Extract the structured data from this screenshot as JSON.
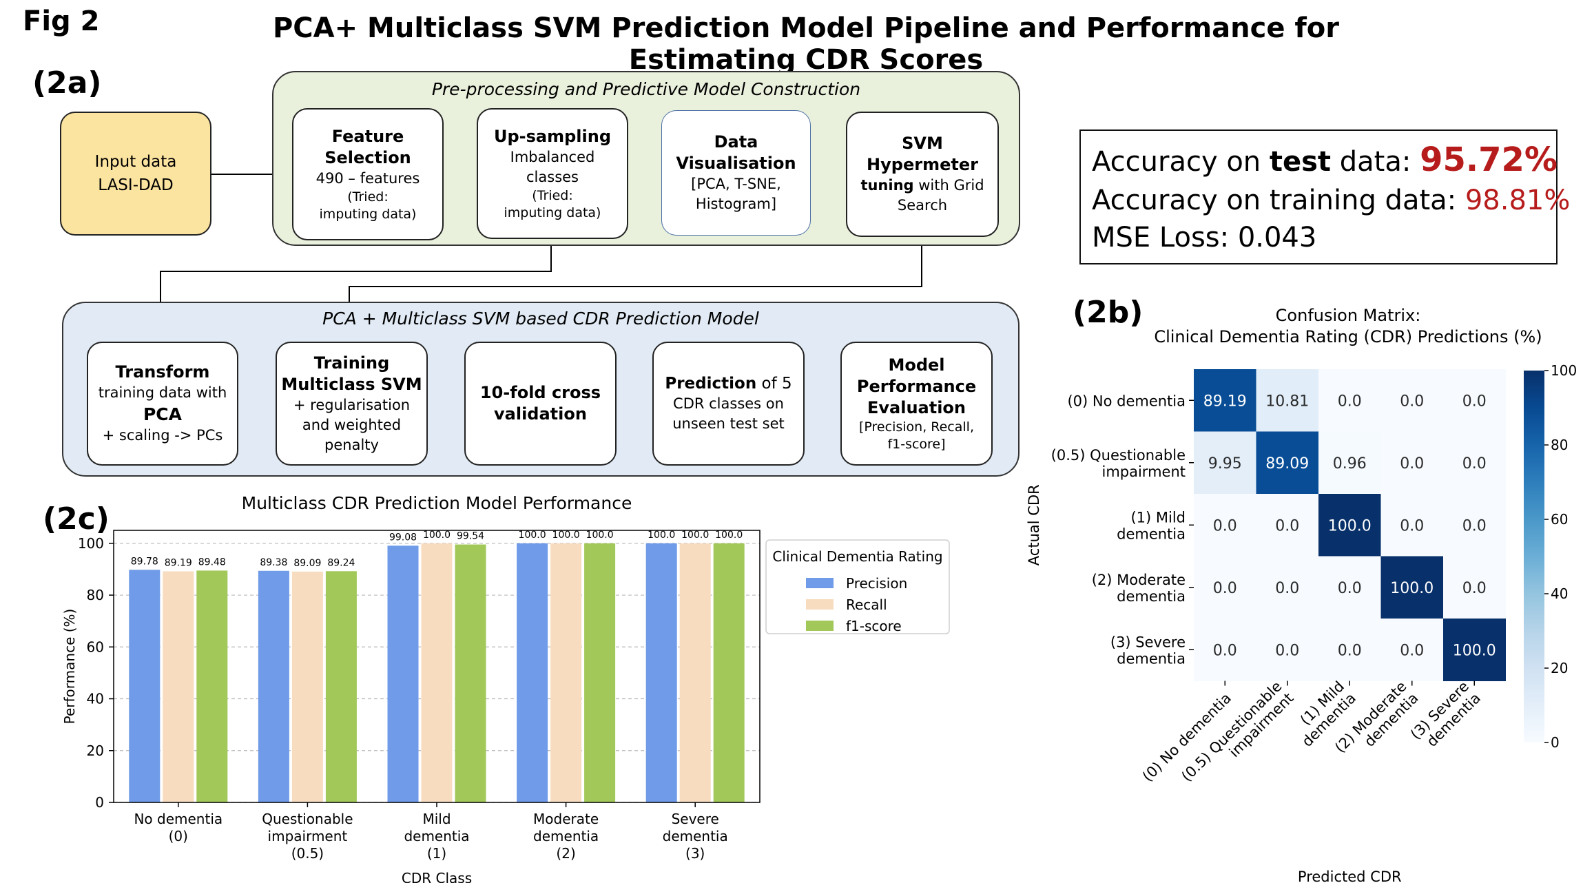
{
  "figure": {
    "label": "Fig 2",
    "title": "PCA+ Multiclass SVM Prediction Model Pipeline and Performance for Estimating CDR Scores"
  },
  "panel_2a": {
    "label": "(2a)",
    "input": {
      "line1": "Input data",
      "line2": "LASI-DAD"
    },
    "preprocessing": {
      "title": "Pre-processing and Predictive Model Construction",
      "feature_selection": {
        "title_l1": "Feature",
        "title_l2": "Selection",
        "line1": "490 – features",
        "line2": "(Tried:",
        "line3": "imputing data)"
      },
      "upsampling": {
        "title": "Up-sampling",
        "line1": "Imbalanced",
        "line2": "classes",
        "line3": "(Tried:",
        "line4": "imputing data)"
      },
      "visualisation": {
        "title_l1": "Data",
        "title_l2": "Visualisation",
        "line1": "[PCA, T-SNE,",
        "line2": "Histogram]"
      },
      "svm_tuning": {
        "title_l1": "SVM",
        "title_l2": "Hypermeter",
        "title_l3_bold": "tuning",
        "title_l3_rest": " with Grid",
        "line1": "Search"
      }
    },
    "prediction_model": {
      "title": "PCA + Multiclass SVM based CDR Prediction Model",
      "transform": {
        "title": "Transform",
        "line1": "training data with",
        "line2_bold": "PCA",
        "line3": "+ scaling -> PCs"
      },
      "training": {
        "title_l1": "Training",
        "title_l2": "Multiclass SVM",
        "line1": "+ regularisation",
        "line2": "and weighted",
        "line3": "penalty"
      },
      "cross_validation": {
        "line1": "10-fold cross",
        "line2": "validation"
      },
      "prediction": {
        "title_bold": "Prediction",
        "title_rest": " of 5",
        "line1": "CDR classes on",
        "line2": "unseen test set"
      },
      "evaluation": {
        "title_l1": "Model",
        "title_l2": "Performance",
        "title_l3": "Evaluation",
        "line1": "[Precision, Recall,",
        "line2": "f1-score]"
      }
    }
  },
  "accuracy": {
    "test_prefix": "Accuracy on ",
    "test_bold": "test",
    "test_suffix": " data: ",
    "test_value": "95.72%",
    "train_label": "Accuracy on training data: ",
    "train_value": "98.81%",
    "mse": "MSE Loss: 0.043",
    "accent_color": "#b71c1c"
  },
  "panel_2b": {
    "label": "(2b)"
  },
  "panel_2c": {
    "label": "(2c)"
  },
  "chart_data": [
    {
      "type": "bar",
      "title": "Multiclass CDR Prediction Model Performance",
      "xlabel": "CDR Class",
      "ylabel": "Performance (%)",
      "ylim": [
        0,
        105
      ],
      "yticks": [
        0,
        20,
        40,
        60,
        80,
        100
      ],
      "grid": true,
      "categories": [
        [
          "No dementia",
          "(0)"
        ],
        [
          "Questionable",
          "impairment",
          "(0.5)"
        ],
        [
          "Mild",
          "dementia",
          "(1)"
        ],
        [
          "Moderate",
          "dementia",
          "(2)"
        ],
        [
          "Severe",
          "dementia",
          "(3)"
        ]
      ],
      "legend": {
        "title": "Clinical Dementia Rating",
        "placement": "right"
      },
      "series": [
        {
          "name": "Precision",
          "color": "#6f9be8",
          "values": [
            89.78,
            89.38,
            99.08,
            100.0,
            100.0
          ]
        },
        {
          "name": "Recall",
          "color": "#f7dcc0",
          "values": [
            89.19,
            89.09,
            100.0,
            100.0,
            100.0
          ]
        },
        {
          "name": "f1-score",
          "color": "#a2c85a",
          "values": [
            89.48,
            89.24,
            99.54,
            100.0,
            100.0
          ]
        }
      ]
    },
    {
      "type": "heatmap",
      "title_l1": "Confusion Matrix:",
      "title_l2": "Clinical Dementia Rating (CDR) Predictions (%)",
      "xlabel": "Predicted CDR",
      "ylabel": "Actual CDR",
      "row_labels": [
        [
          "(0) No dementia"
        ],
        [
          "(0.5) Questionable",
          "impairment"
        ],
        [
          "(1) Mild",
          "dementia"
        ],
        [
          "(2) Moderate",
          "dementia"
        ],
        [
          "(3) Severe",
          "dementia"
        ]
      ],
      "col_labels": [
        [
          "(0) No dementia"
        ],
        [
          "(0.5) Questionable",
          "impairment"
        ],
        [
          "(1) Mild",
          "dementia"
        ],
        [
          "(2) Moderate",
          "dementia"
        ],
        [
          "(3) Severe",
          "dementia"
        ]
      ],
      "matrix": [
        [
          89.19,
          10.81,
          0.0,
          0.0,
          0.0
        ],
        [
          9.95,
          89.09,
          0.96,
          0.0,
          0.0
        ],
        [
          0.0,
          0.0,
          100.0,
          0.0,
          0.0
        ],
        [
          0.0,
          0.0,
          0.0,
          100.0,
          0.0
        ],
        [
          0.0,
          0.0,
          0.0,
          0.0,
          100.0
        ]
      ],
      "colorbar": {
        "min": 0,
        "max": 100,
        "ticks": [
          0,
          20,
          40,
          60,
          80,
          100
        ]
      },
      "colormap": "Blues"
    }
  ]
}
